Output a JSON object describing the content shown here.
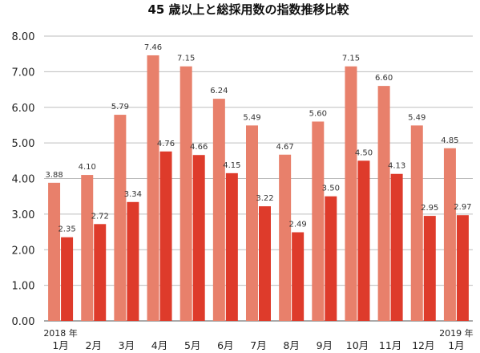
{
  "chart_data": {
    "type": "bar",
    "title": "45 歳以上と総採用数の指数推移比較",
    "categories": [
      "1月",
      "2月",
      "3月",
      "4月",
      "5月",
      "6月",
      "7月",
      "8月",
      "9月",
      "10月",
      "11月",
      "12月",
      "1月"
    ],
    "year_labels": [
      {
        "index": 0,
        "text": "2018 年"
      },
      {
        "index": 12,
        "text": "2019 年"
      }
    ],
    "series": [
      {
        "color": "#e8806b",
        "values": [
          3.88,
          4.1,
          5.79,
          7.46,
          7.15,
          6.24,
          5.49,
          4.67,
          5.6,
          7.15,
          6.6,
          5.49,
          4.85
        ],
        "labels": [
          "3.88",
          "4.10",
          "5.79",
          "7.46",
          "7.15",
          "6.24",
          "5.49",
          "4.67",
          "5.60",
          "7.15",
          "6.60",
          "5.49",
          "4.85"
        ]
      },
      {
        "color": "#de3b2b",
        "values": [
          2.35,
          2.72,
          3.34,
          4.76,
          4.66,
          4.15,
          3.22,
          2.49,
          3.5,
          4.5,
          4.13,
          2.95,
          2.97
        ],
        "labels": [
          "2.35",
          "2.72",
          "3.34",
          "4.76",
          "4.66",
          "4.15",
          "3.22",
          "2.49",
          "3.50",
          "4.50",
          "4.13",
          "2.95",
          "2.97"
        ]
      }
    ],
    "ylim": [
      0,
      8
    ],
    "yticks": [
      "0.00",
      "1.00",
      "2.00",
      "3.00",
      "4.00",
      "5.00",
      "6.00",
      "7.00",
      "8.00"
    ],
    "grid": true,
    "legend": "none"
  }
}
